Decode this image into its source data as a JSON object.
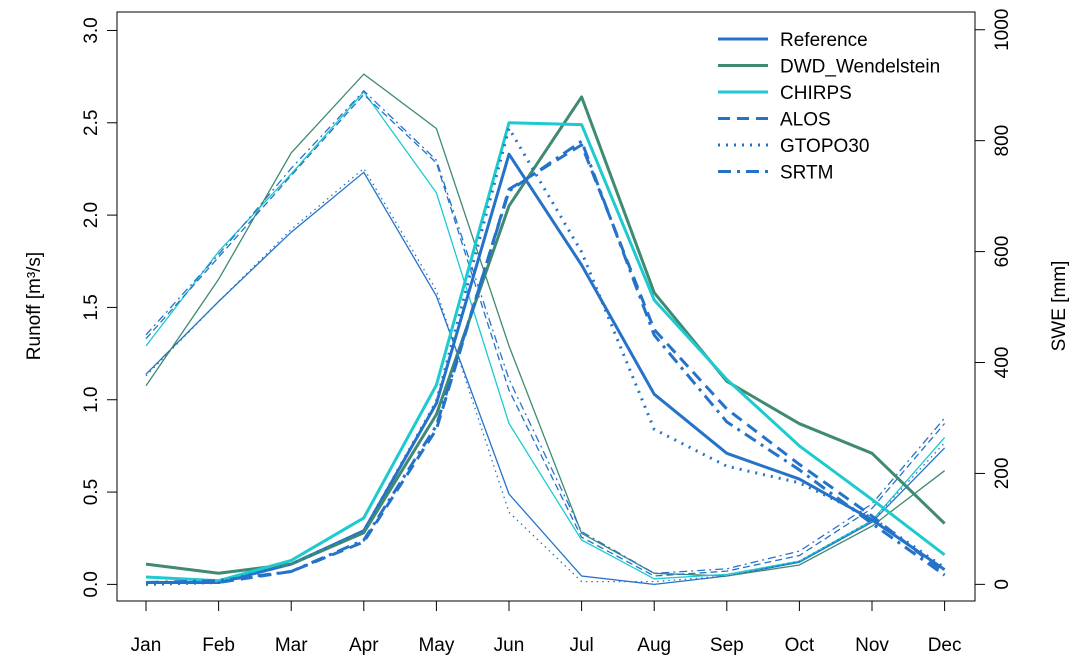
{
  "chart_data": {
    "type": "line",
    "title": "",
    "categories": [
      "Jan",
      "Feb",
      "Mar",
      "Apr",
      "May",
      "Jun",
      "Jul",
      "Aug",
      "Sep",
      "Oct",
      "Nov",
      "Dec"
    ],
    "ylabel": "Runoff [m³/s]",
    "y2label": "SWE [mm]",
    "ylim": [
      -0.09,
      3.1
    ],
    "y2lim": [
      -30,
      1032
    ],
    "yticks": [
      "0.0",
      "0.5",
      "1.0",
      "1.5",
      "2.0",
      "2.5",
      "3.0"
    ],
    "y2ticks": [
      "0",
      "200",
      "400",
      "600",
      "800",
      "1000"
    ],
    "legend": {
      "position": "top-right"
    },
    "colors": {
      "Reference": "#2573c9",
      "DWD_Wendelstein": "#3f8a72",
      "CHIRPS": "#1ccad0",
      "ALOS": "#2573c9",
      "GTOPO30": "#2573c9",
      "SRTM": "#2573c9"
    },
    "runoff": [
      {
        "name": "Reference",
        "dash": "solid",
        "values": [
          0.01,
          0.01,
          0.11,
          0.29,
          0.98,
          2.33,
          1.73,
          1.03,
          0.71,
          0.57,
          0.35,
          0.08
        ]
      },
      {
        "name": "DWD_Wendelstein",
        "dash": "solid",
        "values": [
          0.11,
          0.06,
          0.11,
          0.28,
          0.92,
          2.05,
          2.64,
          1.58,
          1.1,
          0.87,
          0.71,
          0.33
        ]
      },
      {
        "name": "CHIRPS",
        "dash": "solid",
        "values": [
          0.04,
          0.02,
          0.13,
          0.36,
          1.08,
          2.5,
          2.49,
          1.54,
          1.11,
          0.75,
          0.46,
          0.16
        ]
      },
      {
        "name": "ALOS",
        "dash": "dash",
        "values": [
          0.01,
          0.01,
          0.07,
          0.23,
          0.84,
          2.14,
          2.38,
          1.38,
          0.95,
          0.65,
          0.37,
          0.06
        ]
      },
      {
        "name": "GTOPO30",
        "dash": "dot",
        "values": [
          0.0,
          0.01,
          0.11,
          0.29,
          0.99,
          2.47,
          1.8,
          0.84,
          0.64,
          0.55,
          0.36,
          0.09
        ]
      },
      {
        "name": "SRTM",
        "dash": "dashdot",
        "values": [
          0.01,
          0.02,
          0.07,
          0.24,
          0.86,
          2.13,
          2.4,
          1.35,
          0.88,
          0.62,
          0.33,
          0.05
        ]
      }
    ],
    "swe": [
      {
        "name": "Reference",
        "dash": "solid",
        "values": [
          379,
          510,
          635,
          743,
          520,
          163,
          15,
          0,
          15,
          40,
          112,
          246
        ]
      },
      {
        "name": "DWD_Wendelstein",
        "dash": "solid",
        "values": [
          358,
          550,
          778,
          920,
          822,
          430,
          92,
          20,
          15,
          35,
          105,
          205
        ]
      },
      {
        "name": "CHIRPS",
        "dash": "solid",
        "values": [
          430,
          600,
          740,
          888,
          706,
          290,
          80,
          10,
          18,
          42,
          115,
          265
        ]
      },
      {
        "name": "ALOS",
        "dash": "dash",
        "values": [
          443,
          590,
          737,
          883,
          760,
          350,
          85,
          15,
          24,
          52,
          137,
          290
        ]
      },
      {
        "name": "GTOPO30",
        "dash": "dot",
        "values": [
          376,
          510,
          640,
          750,
          530,
          130,
          5,
          5,
          15,
          42,
          115,
          255
        ]
      },
      {
        "name": "SRTM",
        "dash": "dashdot",
        "values": [
          450,
          595,
          750,
          890,
          765,
          370,
          95,
          20,
          28,
          60,
          145,
          300
        ]
      }
    ]
  }
}
